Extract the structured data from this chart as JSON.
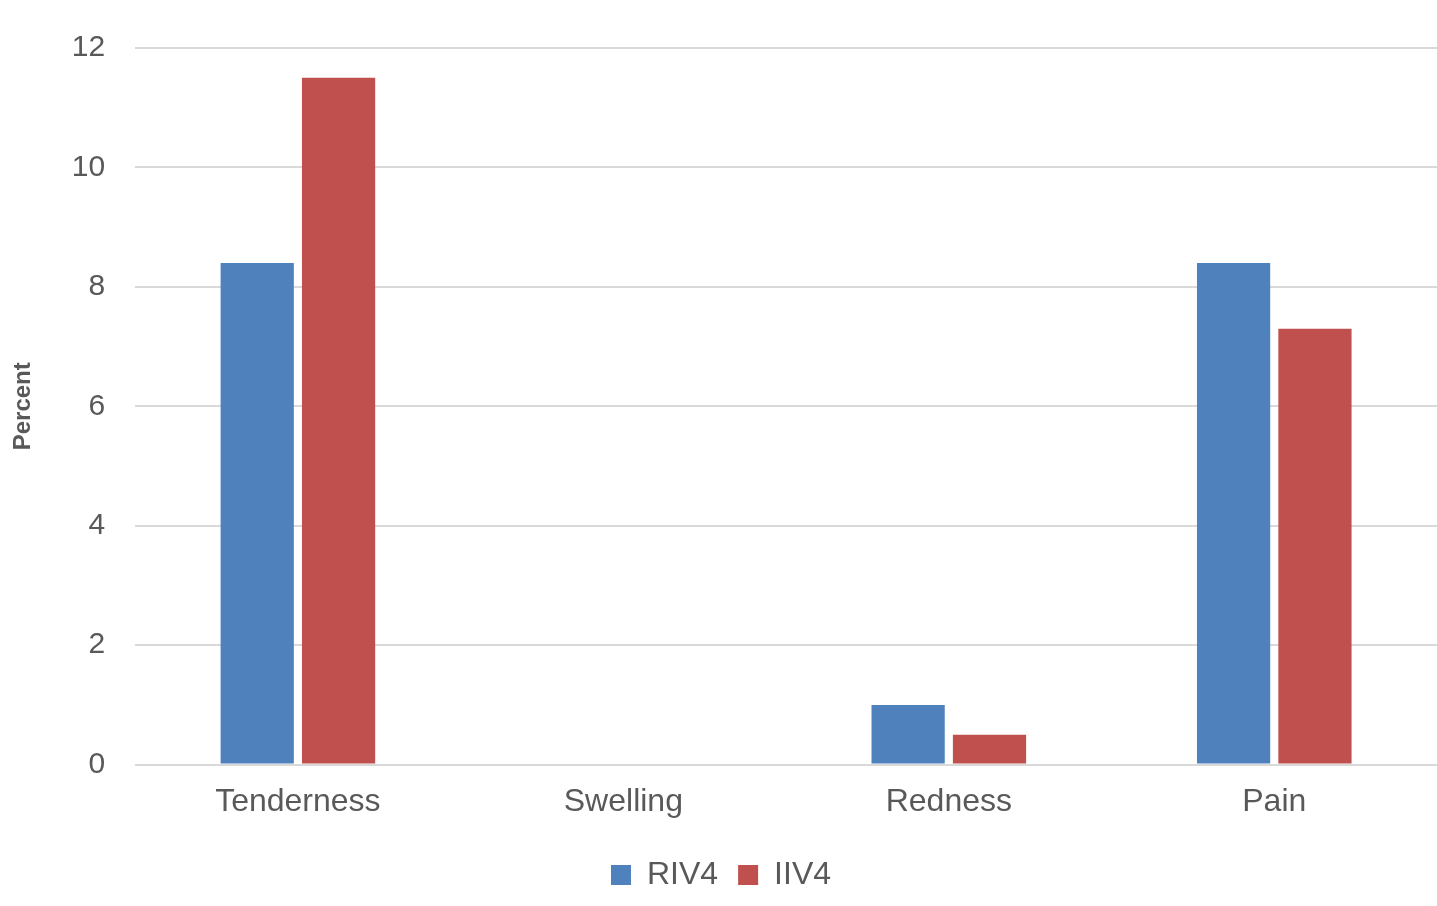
{
  "chart_data": {
    "type": "bar",
    "ylabel": "Percent",
    "categories": [
      "Tenderness",
      "Swelling",
      "Redness",
      "Pain"
    ],
    "series": [
      {
        "name": "RIV4",
        "color": "#4f81bd",
        "values": [
          8.4,
          0,
          1.0,
          8.4
        ]
      },
      {
        "name": "IIV4",
        "color": "#c0504d",
        "values": [
          11.5,
          0,
          0.5,
          7.3
        ]
      }
    ],
    "ylim": [
      0,
      12
    ],
    "yticks": [
      0,
      2,
      4,
      6,
      8,
      10,
      12
    ],
    "grid": "y",
    "legend": "bottom"
  }
}
